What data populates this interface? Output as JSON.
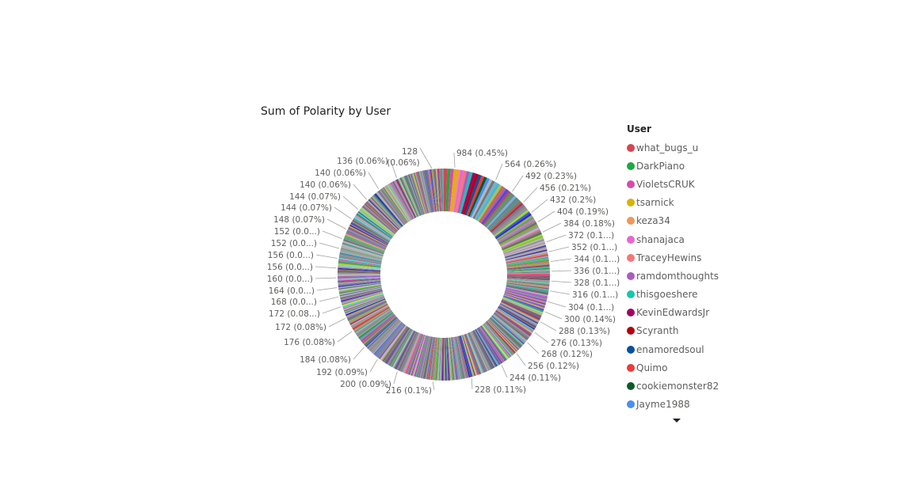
{
  "chart_data": {
    "type": "pie",
    "subtype": "donut",
    "title": "Sum of Polarity by User",
    "legend": {
      "title": "User",
      "placement": "right",
      "entries": [
        {
          "name": "what_bugs_u",
          "color": "#d64550"
        },
        {
          "name": "DarkPiano",
          "color": "#1aab40"
        },
        {
          "name": "VioletsCRUK",
          "color": "#d64ab0"
        },
        {
          "name": "tsarnick",
          "color": "#d9b300"
        },
        {
          "name": "keza34",
          "color": "#f0975a"
        },
        {
          "name": "shanajaca",
          "color": "#e868d0"
        },
        {
          "name": "TraceyHewins",
          "color": "#f3787b"
        },
        {
          "name": "ramdomthoughts",
          "color": "#ac5cbf"
        },
        {
          "name": "thisgoeshere",
          "color": "#15c6ae"
        },
        {
          "name": "KevinEdwardsJr",
          "color": "#a30063"
        },
        {
          "name": "Scyranth",
          "color": "#b30012"
        },
        {
          "name": "enamoredsoul",
          "color": "#0a4fa0"
        },
        {
          "name": "Quimo",
          "color": "#ee3a3a"
        },
        {
          "name": "cookiemonster82",
          "color": "#0c5a27"
        },
        {
          "name": "Jayme1988",
          "color": "#4a8ff0"
        }
      ]
    },
    "data_labels": [
      {
        "text": "984 (0.45%)",
        "value": 984
      },
      {
        "text": "564 (0.26%)",
        "value": 564
      },
      {
        "text": "492 (0.23%)",
        "value": 492
      },
      {
        "text": "456 (0.21%)",
        "value": 456
      },
      {
        "text": "432 (0.2%)",
        "value": 432
      },
      {
        "text": "404 (0.19%)",
        "value": 404
      },
      {
        "text": "384 (0.18%)",
        "value": 384
      },
      {
        "text": "372 (0.1...)",
        "value": 372
      },
      {
        "text": "352 (0.1...)",
        "value": 352
      },
      {
        "text": "344 (0.1...)",
        "value": 344
      },
      {
        "text": "336 (0.1...)",
        "value": 336
      },
      {
        "text": "328 (0.1...)",
        "value": 328
      },
      {
        "text": "316 (0.1...)",
        "value": 316
      },
      {
        "text": "304 (0.1...)",
        "value": 304
      },
      {
        "text": "300 (0.14%)",
        "value": 300
      },
      {
        "text": "288 (0.13%)",
        "value": 288
      },
      {
        "text": "276 (0.13%)",
        "value": 276
      },
      {
        "text": "268 (0.12%)",
        "value": 268
      },
      {
        "text": "256 (0.12%)",
        "value": 256
      },
      {
        "text": "244 (0.11%)",
        "value": 244
      },
      {
        "text": "228 (0.11%)",
        "value": 228
      },
      {
        "text": "216 (0.1%)",
        "value": 216
      },
      {
        "text": "200 (0.09%)",
        "value": 200
      },
      {
        "text": "192 (0.09%)",
        "value": 192
      },
      {
        "text": "184 (0.08%)",
        "value": 184
      },
      {
        "text": "176 (0.08%)",
        "value": 176
      },
      {
        "text": "172 (0.08%)",
        "value": 172
      },
      {
        "text": "172 (0.08...)",
        "value": 172
      },
      {
        "text": "168 (0.0...)",
        "value": 168
      },
      {
        "text": "164 (0.0...)",
        "value": 164
      },
      {
        "text": "160 (0.0...)",
        "value": 160
      },
      {
        "text": "156 (0.0...)",
        "value": 156
      },
      {
        "text": "156 (0.0...)",
        "value": 156
      },
      {
        "text": "152 (0.0...)",
        "value": 152
      },
      {
        "text": "152 (0.0...)",
        "value": 152
      },
      {
        "text": "148 (0.07%)",
        "value": 148
      },
      {
        "text": "144 (0.07%)",
        "value": 144
      },
      {
        "text": "144 (0.07%)",
        "value": 144
      },
      {
        "text": "140 (0.06%)",
        "value": 140
      },
      {
        "text": "140 (0.06%)",
        "value": 140
      },
      {
        "text": "136 (0.06%)",
        "value": 136
      },
      {
        "text": "128 (0.06%)",
        "value": 128
      }
    ]
  }
}
